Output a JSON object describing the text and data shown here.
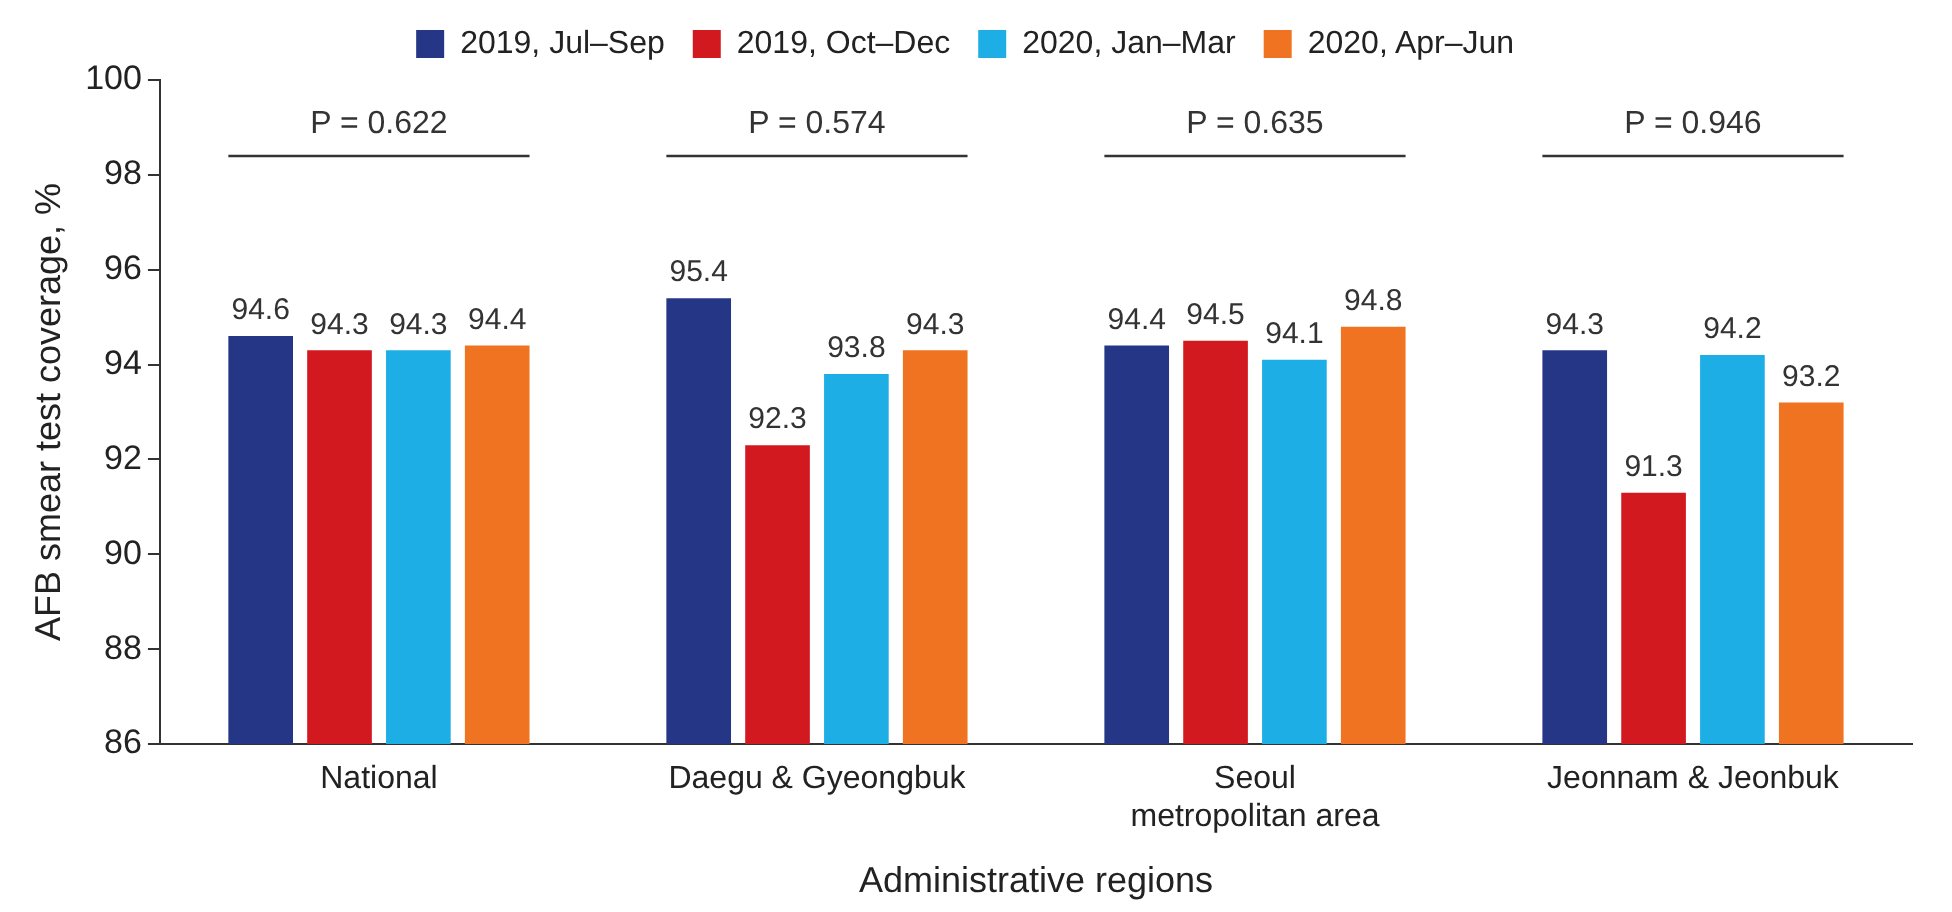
{
  "chart_data": {
    "type": "bar",
    "xlabel": "Administrative regions",
    "ylabel": "AFB smear test coverage, %",
    "categories": [
      "National",
      "Daegu & Gyeongbuk",
      "Seoul metropolitan area",
      "Jeonnam & Jeonbuk"
    ],
    "series": [
      {
        "name": "2019, Jul–Sep",
        "color": "#253686",
        "values": [
          94.6,
          95.4,
          94.4,
          94.3
        ]
      },
      {
        "name": "2019, Oct–Dec",
        "color": "#d2191f",
        "values": [
          94.3,
          92.3,
          94.5,
          91.3
        ]
      },
      {
        "name": "2020, Jan–Mar",
        "color": "#1eaee6",
        "values": [
          94.3,
          93.8,
          94.1,
          94.2
        ]
      },
      {
        "name": "2020, Apr–Jun",
        "color": "#ef7320",
        "values": [
          94.4,
          94.3,
          94.8,
          93.2
        ]
      }
    ],
    "ylim": [
      86,
      100
    ],
    "yticks": [
      86,
      88,
      90,
      92,
      94,
      96,
      98,
      100
    ],
    "grid": false,
    "legend": "top",
    "data_labels": true,
    "annotations": [
      "P = 0.622",
      "P = 0.574",
      "P = 0.635",
      "P = 0.946"
    ]
  }
}
